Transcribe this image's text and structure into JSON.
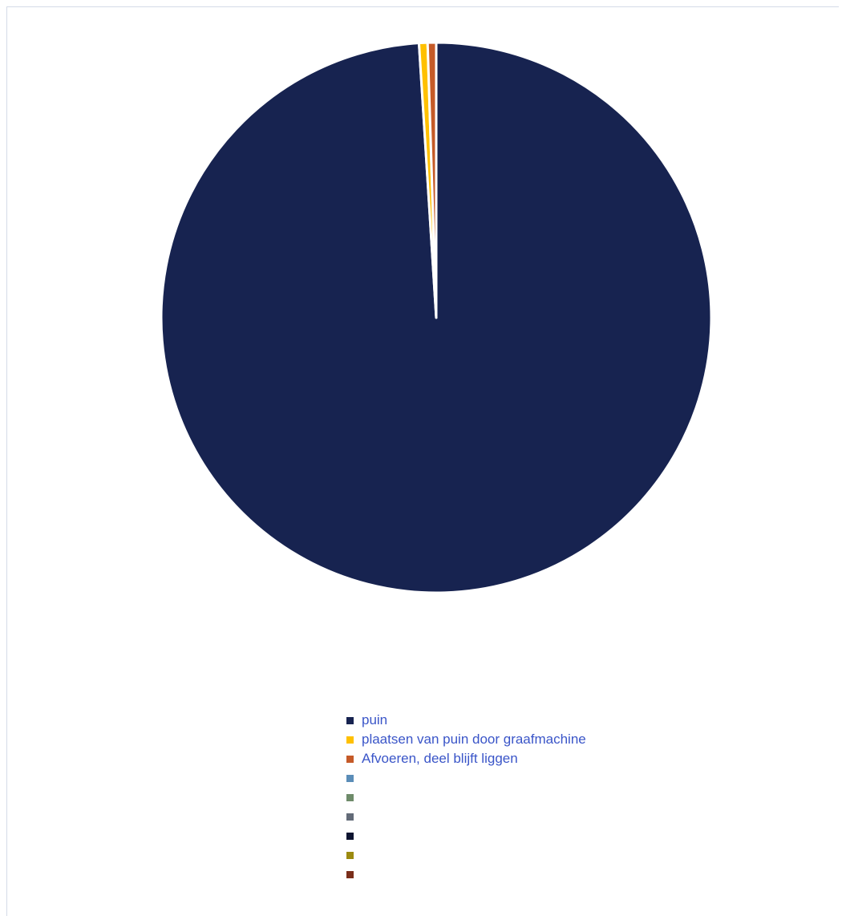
{
  "chart_data": {
    "type": "pie",
    "title": "",
    "categories": [
      "puin",
      "plaatsen van puin door graafmachine",
      "Afvoeren, deel blijft liggen",
      "",
      "",
      "",
      "",
      "",
      ""
    ],
    "values": [
      99.0,
      0.5,
      0.5,
      0,
      0,
      0,
      0,
      0,
      0
    ],
    "colors": [
      "#172350",
      "#ffc000",
      "#c55a28",
      "#5b8db8",
      "#6e8b6a",
      "#636b78",
      "#0d1430",
      "#9c8a10",
      "#7a2e1a"
    ],
    "legend": "bottom",
    "start_angle_deg": 0
  }
}
